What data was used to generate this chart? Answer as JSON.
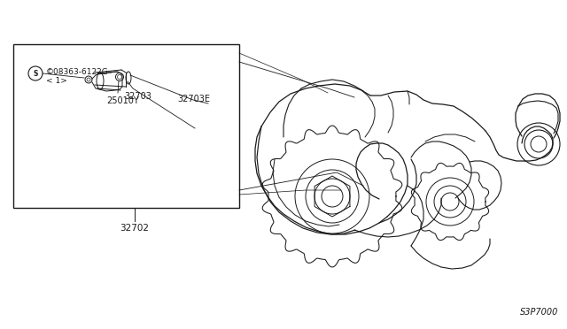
{
  "bg_color": "#ffffff",
  "line_color": "#1a1a1a",
  "fig_width": 6.4,
  "fig_height": 3.72,
  "dpi": 100,
  "labels": {
    "part_number_top": "©08363-6122G",
    "part_number_sub": "< 1>",
    "label_32703E": "32703E",
    "label_25010Y": "25010Y",
    "label_32703": "32703",
    "label_32702": "32702",
    "label_diagram_code": "S3P7000"
  },
  "font_size": 7.5
}
